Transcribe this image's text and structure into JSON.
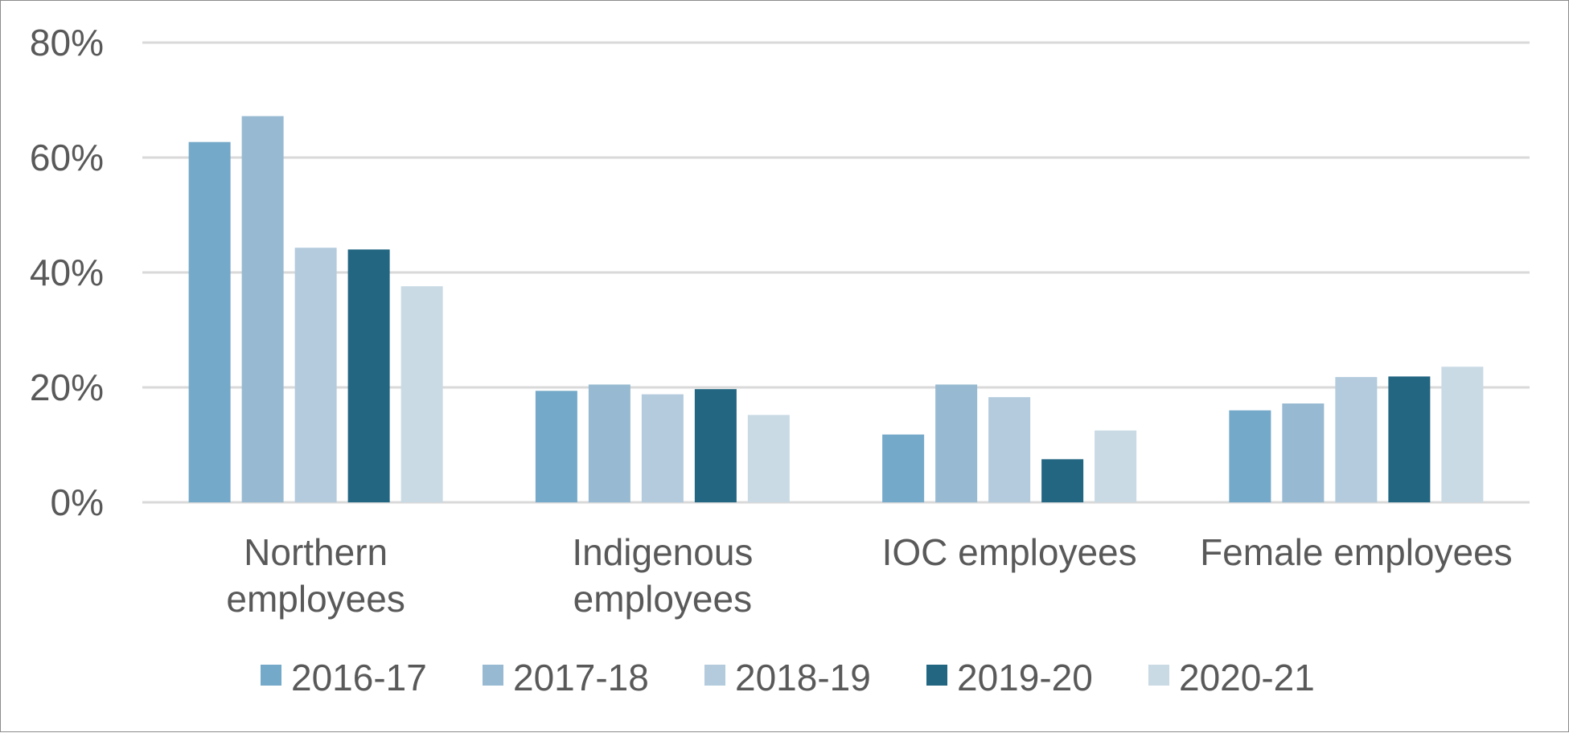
{
  "chart_data": {
    "type": "bar",
    "title": "",
    "xlabel": "",
    "ylabel": "",
    "categories": [
      [
        "Northern",
        "employees"
      ],
      [
        "Indigenous",
        "employees"
      ],
      [
        "IOC employees"
      ],
      [
        "Female employees"
      ]
    ],
    "series": [
      {
        "name": "2016-17",
        "color": "#74a9c9",
        "values": [
          62.7,
          19.4,
          11.8,
          16.0
        ]
      },
      {
        "name": "2017-18",
        "color": "#97bad2",
        "values": [
          67.2,
          20.5,
          20.5,
          17.2
        ]
      },
      {
        "name": "2018-19",
        "color": "#b3cbdd",
        "values": [
          44.3,
          18.8,
          18.3,
          21.8
        ]
      },
      {
        "name": "2019-20",
        "color": "#226681",
        "values": [
          44.0,
          19.7,
          7.5,
          21.9
        ]
      },
      {
        "name": "2020-21",
        "color": "#c9dae5",
        "values": [
          37.6,
          15.2,
          12.5,
          23.6
        ]
      }
    ],
    "ylim": [
      0,
      80
    ],
    "yticks": [
      0,
      20,
      40,
      60,
      80
    ],
    "ytick_labels": [
      "0%",
      "20%",
      "40%",
      "60%",
      "80%"
    ],
    "grid": true,
    "legend_position": "bottom",
    "gridline_color": "#d9d9d9",
    "text_color": "#595959"
  }
}
